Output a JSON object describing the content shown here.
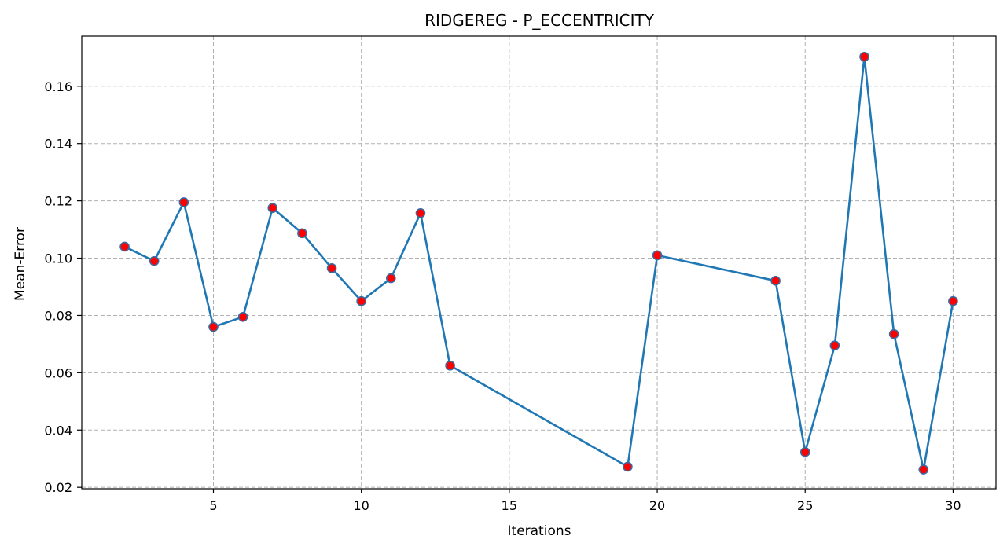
{
  "chart_data": {
    "type": "line",
    "title": "RIDGEREG - P_ECCENTRICITY",
    "xlabel": "Iterations",
    "ylabel": "Mean-Error",
    "xlim": [
      0.55,
      31.45
    ],
    "ylim": [
      0.0195,
      0.1775
    ],
    "xticks": [
      5,
      10,
      15,
      20,
      25,
      30
    ],
    "yticks": [
      0.02,
      0.04,
      0.06,
      0.08,
      0.1,
      0.12,
      0.14,
      0.16
    ],
    "ytick_labels": [
      "0.02",
      "0.04",
      "0.06",
      "0.08",
      "0.10",
      "0.12",
      "0.14",
      "0.16"
    ],
    "grid": true,
    "colors": {
      "line": "#1f77b4",
      "marker_face": "#ff0000",
      "marker_edge": "#3b6aa0",
      "grid": "#b0b0b0"
    },
    "series": [
      {
        "x": [
          2,
          3,
          4,
          5,
          6,
          7,
          8,
          9,
          10,
          11,
          12,
          13,
          19,
          20,
          24,
          25,
          26,
          27,
          28,
          29,
          30
        ],
        "values": [
          0.104,
          0.099,
          0.1195,
          0.076,
          0.0795,
          0.1175,
          0.1087,
          0.0965,
          0.085,
          0.093,
          0.1157,
          0.0625,
          0.0272,
          0.101,
          0.0921,
          0.0323,
          0.0695,
          0.1703,
          0.0735,
          0.0262,
          0.085
        ]
      }
    ]
  }
}
